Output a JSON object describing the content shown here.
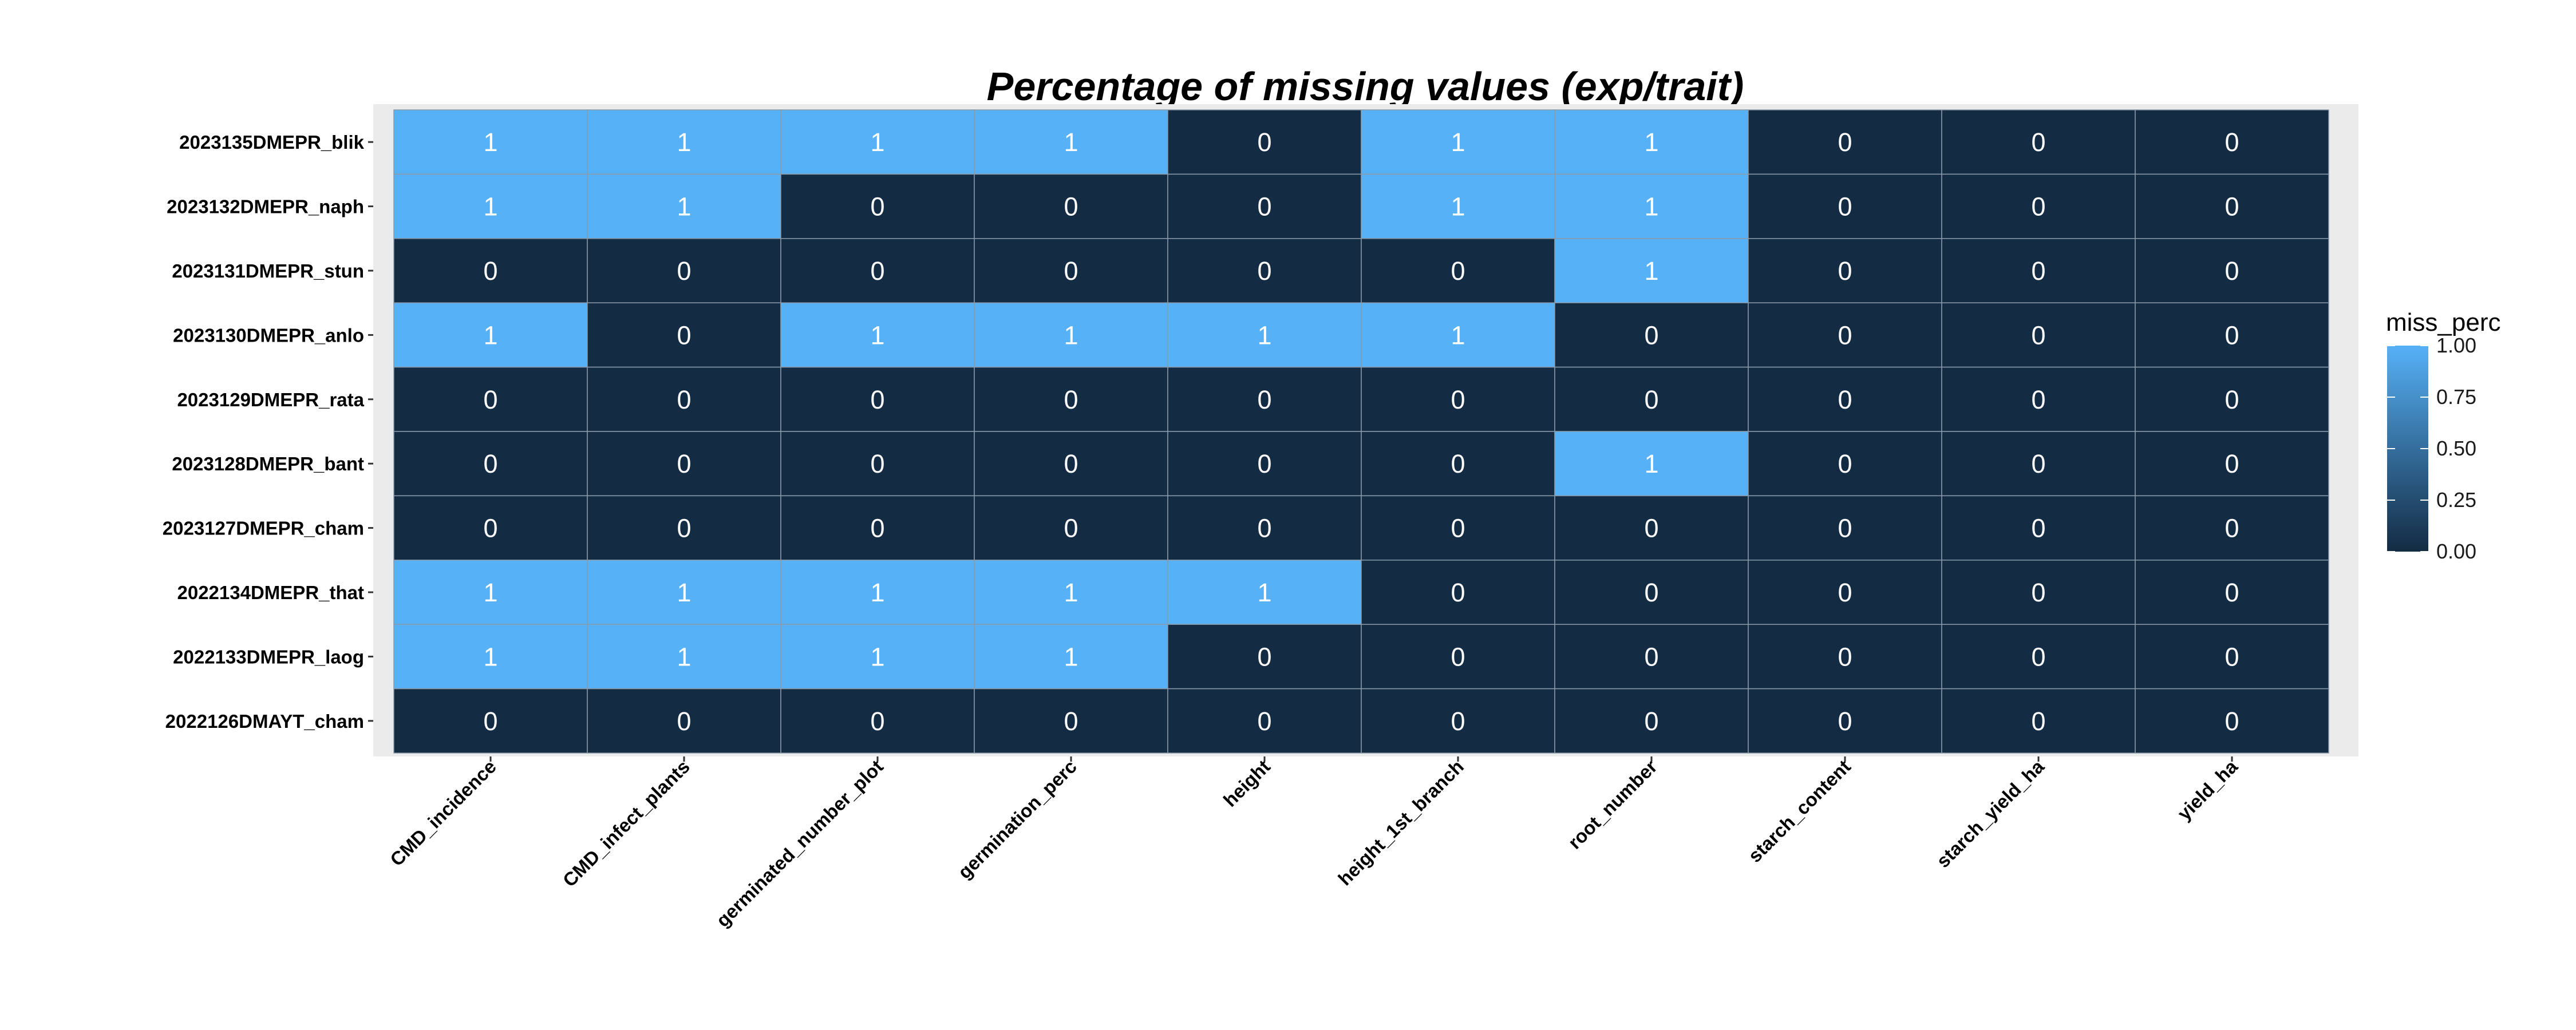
{
  "chart_data": {
    "type": "heatmap",
    "title": "Percentage of missing values (exp/trait)",
    "xlabel": "",
    "ylabel": "",
    "x_categories": [
      "CMD_incidence",
      "CMD_infect_plants",
      "germinated_number_plot",
      "germination_perc",
      "height",
      "height_1st_branch",
      "root_number",
      "starch_content",
      "starch_yield_ha",
      "yield_ha"
    ],
    "y_categories": [
      "2023135DMEPR_blik",
      "2023132DMEPR_naph",
      "2023131DMEPR_stun",
      "2023130DMEPR_anlo",
      "2023129DMEPR_rata",
      "2023128DMEPR_bant",
      "2023127DMEPR_cham",
      "2022134DMEPR_that",
      "2022133DMEPR_laog",
      "2022126DMAYT_cham"
    ],
    "values": [
      [
        1,
        1,
        1,
        1,
        0,
        1,
        1,
        0,
        0,
        0
      ],
      [
        1,
        1,
        0,
        0,
        0,
        1,
        1,
        0,
        0,
        0
      ],
      [
        0,
        0,
        0,
        0,
        0,
        0,
        1,
        0,
        0,
        0
      ],
      [
        1,
        0,
        1,
        1,
        1,
        1,
        0,
        0,
        0,
        0
      ],
      [
        0,
        0,
        0,
        0,
        0,
        0,
        0,
        0,
        0,
        0
      ],
      [
        0,
        0,
        0,
        0,
        0,
        0,
        1,
        0,
        0,
        0
      ],
      [
        0,
        0,
        0,
        0,
        0,
        0,
        0,
        0,
        0,
        0
      ],
      [
        1,
        1,
        1,
        1,
        1,
        0,
        0,
        0,
        0,
        0
      ],
      [
        1,
        1,
        1,
        1,
        0,
        0,
        0,
        0,
        0,
        0
      ],
      [
        0,
        0,
        0,
        0,
        0,
        0,
        0,
        0,
        0,
        0
      ]
    ],
    "legend": {
      "title": "miss_perc",
      "position": "right",
      "ticks": [
        "1.00",
        "0.75",
        "0.50",
        "0.25",
        "0.00"
      ],
      "range": [
        0,
        1
      ]
    },
    "colors": {
      "low": "#132B43",
      "high": "#56B1F7",
      "panel_background": "#EBEBEB",
      "cell_border": "#8a9aaa"
    }
  }
}
